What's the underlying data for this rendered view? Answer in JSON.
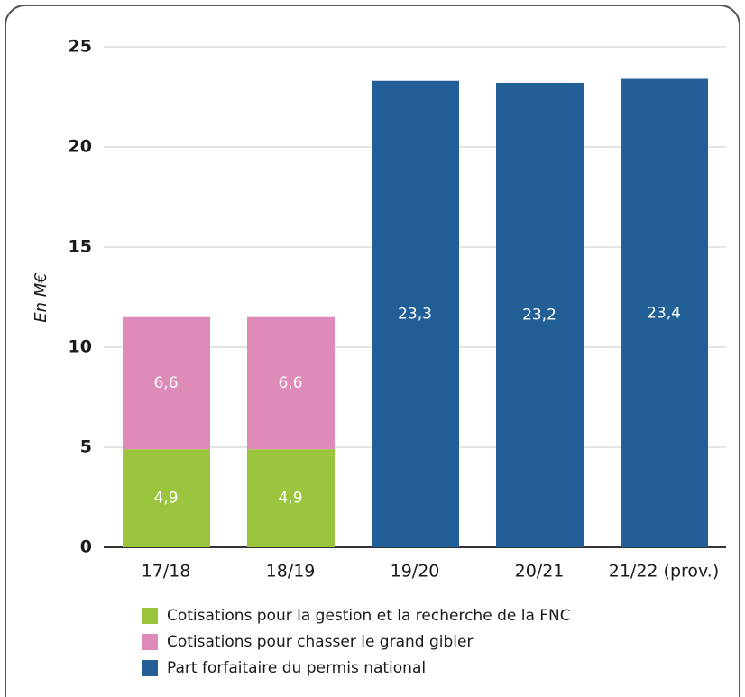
{
  "chart_data": {
    "type": "stacked_bar",
    "y_label": "En M€",
    "categories": [
      "17/18",
      "18/19",
      "19/20",
      "20/21",
      "21/22 (prov.)"
    ],
    "series": [
      {
        "name": "Cotisations pour la gestion et la recherche de la FNC",
        "color": "#9bc53d",
        "values": [
          4.9,
          4.9,
          null,
          null,
          null
        ],
        "value_labels": [
          "4,9",
          "4,9",
          null,
          null,
          null
        ]
      },
      {
        "name": "Cotisations pour chasser le grand gibier",
        "color": "#de8bba",
        "values": [
          6.6,
          6.6,
          null,
          null,
          null
        ],
        "value_labels": [
          "6,6",
          "6,6",
          null,
          null,
          null
        ]
      },
      {
        "name": "Part forfaitaire du permis national",
        "color": "#215f96",
        "values": [
          null,
          null,
          23.3,
          23.2,
          23.4
        ],
        "value_labels": [
          null,
          null,
          "23,3",
          "23,2",
          "23,4"
        ]
      }
    ],
    "ylim": [
      0,
      25
    ],
    "yticks": [
      0,
      5,
      10,
      15,
      20,
      25
    ],
    "grid": true,
    "legend": "bottom"
  }
}
